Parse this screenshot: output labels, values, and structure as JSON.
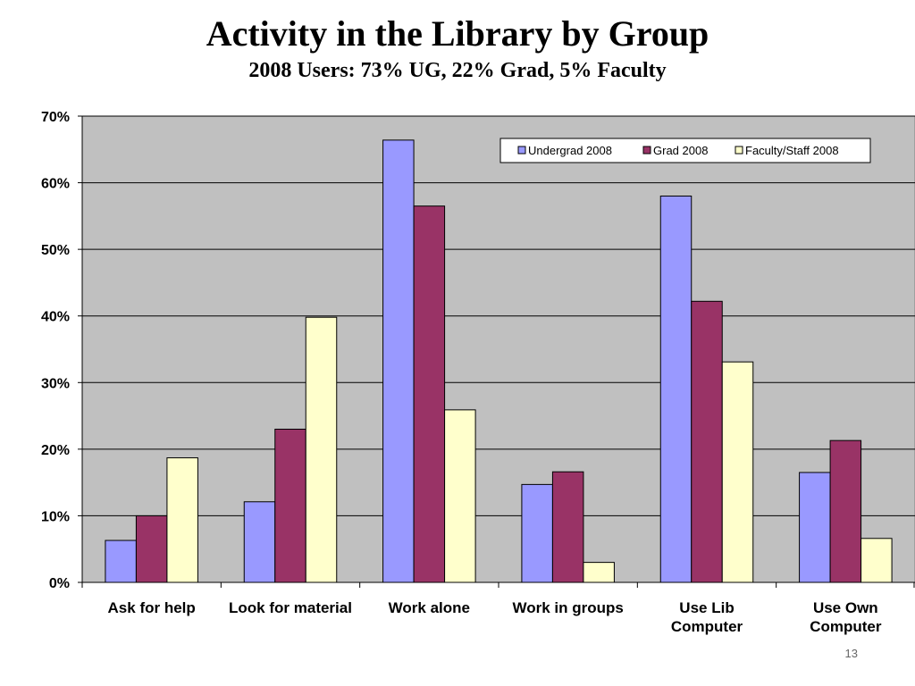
{
  "title": "Activity in the Library by Group",
  "subtitle": "2008 Users:  73% UG, 22% Grad, 5% Faculty",
  "page_number": "13",
  "chart_data": {
    "type": "bar",
    "categories": [
      [
        "Ask for help"
      ],
      [
        "Look for material"
      ],
      [
        "Work alone"
      ],
      [
        "Work in groups"
      ],
      [
        "Use Lib",
        "Computer"
      ],
      [
        "Use Own",
        "Computer"
      ]
    ],
    "series": [
      {
        "name": "Undergrad 2008",
        "color": "#9999ff",
        "values": [
          6.3,
          12.1,
          66.4,
          14.7,
          58.0,
          16.5
        ]
      },
      {
        "name": "Grad 2008",
        "color": "#993366",
        "values": [
          10.0,
          23.0,
          56.5,
          16.6,
          42.2,
          21.3
        ]
      },
      {
        "name": "Faculty/Staff 2008",
        "color": "#ffffcc",
        "values": [
          18.7,
          39.8,
          25.9,
          3.0,
          33.1,
          6.6
        ]
      }
    ],
    "ylim": [
      0,
      70
    ],
    "yticks": [
      {
        "value": 0,
        "label": "0%"
      },
      {
        "value": 10,
        "label": "10%"
      },
      {
        "value": 20,
        "label": "20%"
      },
      {
        "value": 30,
        "label": "30%"
      },
      {
        "value": 40,
        "label": "40%"
      },
      {
        "value": 50,
        "label": "50%"
      },
      {
        "value": 60,
        "label": "60%"
      },
      {
        "value": 70,
        "label": "70%"
      }
    ],
    "plot_background": "#c0c0c0",
    "grid": true,
    "legend_position": "top-right"
  }
}
